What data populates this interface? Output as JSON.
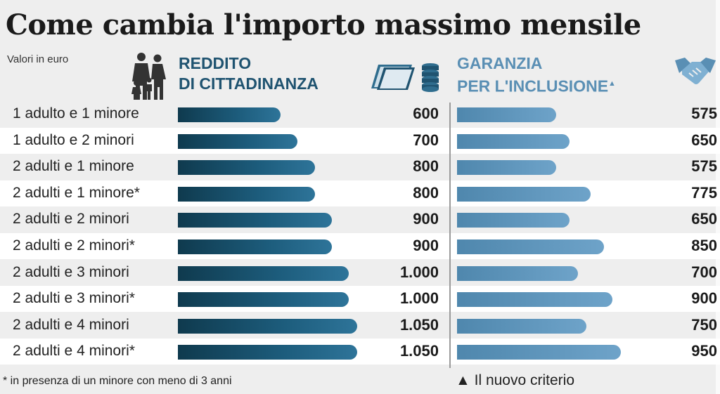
{
  "title": "Come cambia l'importo massimo mensile",
  "subtitle": "Valori in euro",
  "headers": {
    "rdc_line1": "REDDITO",
    "rdc_line2": "DI CITTADINANZA",
    "gpi_line1": "GARANZIA",
    "gpi_line2": "PER L'INCLUSIONE",
    "gpi_mark": "▲"
  },
  "icons": {
    "family": "family-icon",
    "money": "banknotes-coins-icon",
    "handshake": "handshake-icon"
  },
  "colors": {
    "rdc": "#1d5d7d",
    "gpi": "#6ea3c9"
  },
  "chart_data": {
    "type": "bar",
    "orientation": "horizontal",
    "unit": "euro",
    "categories": [
      "1 adulto e 1 minore",
      "1 adulto e 2 minori",
      "2 adulti e 1 minore",
      "2 adulti e 1 minore*",
      "2 adulti e 2 minori",
      "2 adulti e 2 minori*",
      "2 adulti e 3 minori",
      "2 adulti e 3 minori*",
      "2 adulti e 4 minori",
      "2 adulti e 4 minori*"
    ],
    "series": [
      {
        "name": "REDDITO DI CITTADINANZA",
        "values": [
          600,
          700,
          800,
          800,
          900,
          900,
          1000,
          1000,
          1050,
          1050
        ],
        "labels": [
          "600",
          "700",
          "800",
          "800",
          "900",
          "900",
          "1.000",
          "1.000",
          "1.050",
          "1.050"
        ]
      },
      {
        "name": "GARANZIA PER L'INCLUSIONE",
        "values": [
          575,
          650,
          575,
          775,
          650,
          850,
          700,
          900,
          750,
          950
        ],
        "labels": [
          "575",
          "650",
          "575",
          "775",
          "650",
          "850",
          "700",
          "900",
          "750",
          "950"
        ]
      }
    ]
  },
  "footnotes": {
    "left": "* in presenza di un minore con meno di 3 anni",
    "right": "▲ Il nuovo criterio"
  }
}
